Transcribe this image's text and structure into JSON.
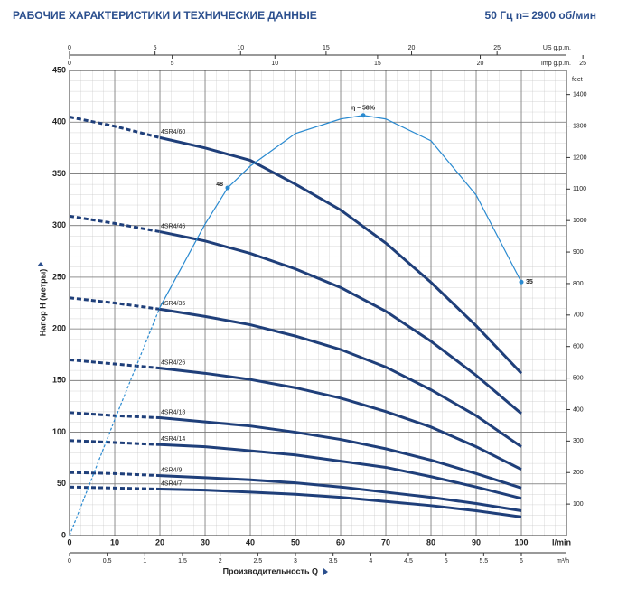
{
  "chart_data": {
    "type": "line",
    "title": "РАБОЧИЕ ХАРАКТЕРИСТИКИ И ТЕХНИЧЕСКИЕ ДАННЫЕ",
    "subtitle": "50 Гц   n= 2900 об/мин",
    "y_label": "Напор H (метры)",
    "x_label": "Производительность Q",
    "x_unit": "l/min",
    "x2_unit": "m³/h",
    "us_unit": "US g.p.m.",
    "imp_unit": "Imp g.p.m.",
    "y2_unit": "feet",
    "xlim": [
      0,
      110
    ],
    "xticks": [
      0,
      10,
      20,
      30,
      40,
      50,
      60,
      70,
      80,
      90,
      100
    ],
    "ylim": [
      0,
      450
    ],
    "yticks": [
      0,
      50,
      100,
      150,
      200,
      250,
      300,
      350,
      400,
      450
    ],
    "x2lim": [
      0,
      6.6
    ],
    "x2ticks": [
      0,
      0.5,
      1,
      1.5,
      2,
      2.5,
      3,
      3.5,
      4,
      4.5,
      5,
      5.5,
      6
    ],
    "uslim": [
      0,
      29.06
    ],
    "usticks": [
      0,
      5,
      10,
      15,
      20,
      25
    ],
    "implim": [
      0,
      24.2
    ],
    "impticks": [
      0,
      5,
      10,
      15,
      20,
      25
    ],
    "y2lim": [
      0,
      1476.4
    ],
    "y2ticks": [
      100,
      200,
      300,
      400,
      500,
      600,
      700,
      800,
      900,
      1000,
      1100,
      1200,
      1300,
      1400
    ],
    "grid": true,
    "color": "#1f3f7a",
    "solid_from": 20,
    "x": [
      0,
      10,
      20,
      30,
      40,
      50,
      60,
      70,
      80,
      90,
      100
    ],
    "series": [
      {
        "name": "4SR4/60",
        "values": [
          405,
          396,
          385,
          375,
          363,
          340,
          315,
          283,
          245,
          203,
          157
        ]
      },
      {
        "name": "4SR4/46",
        "values": [
          309,
          302,
          294,
          285,
          273,
          258,
          240,
          217,
          188,
          155,
          118
        ]
      },
      {
        "name": "4SR4/35",
        "values": [
          230,
          225,
          219,
          212,
          204,
          193,
          180,
          163,
          141,
          116,
          86
        ]
      },
      {
        "name": "4SR4/26",
        "values": [
          170,
          166,
          162,
          157,
          151,
          143,
          133,
          120,
          105,
          86,
          64
        ]
      },
      {
        "name": "4SR4/18",
        "values": [
          119,
          116,
          114,
          110,
          106,
          100,
          93,
          84,
          73,
          60,
          46
        ]
      },
      {
        "name": "4SR4/14",
        "values": [
          92,
          90,
          88,
          86,
          82,
          78,
          72,
          66,
          57,
          47,
          36
        ]
      },
      {
        "name": "4SR4/9",
        "values": [
          61,
          60,
          58,
          56,
          54,
          51,
          47,
          42,
          37,
          31,
          24
        ]
      },
      {
        "name": "4SR4/7",
        "values": [
          47,
          46,
          45,
          44,
          42,
          40,
          37,
          33,
          29,
          24,
          18
        ]
      }
    ],
    "efficiency": {
      "color": "#2a8ad0",
      "lim": [
        0,
        64.2
      ],
      "x": [
        0,
        10,
        20,
        30,
        35,
        40,
        50,
        60,
        65,
        70,
        80,
        90,
        100
      ],
      "values": [
        0,
        16,
        31.5,
        43,
        48,
        51,
        55.5,
        57.5,
        58,
        57.5,
        54.5,
        47,
        35
      ],
      "markers": [
        {
          "x": 35,
          "value": 48,
          "label": "48"
        },
        {
          "x": 65,
          "value": 58,
          "label": "η – 58%"
        },
        {
          "x": 100,
          "value": 35,
          "label": "35"
        }
      ]
    }
  }
}
